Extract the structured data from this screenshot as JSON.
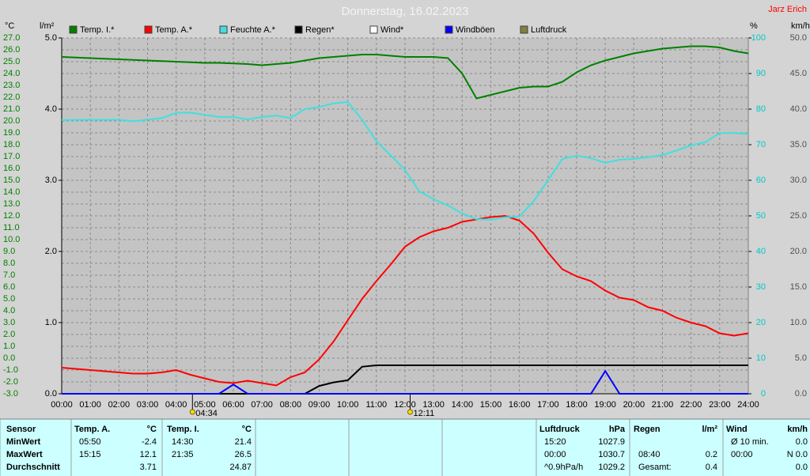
{
  "chart_data": {
    "type": "line",
    "title": "Donnerstag, 16.02.2023",
    "author": "Jarz Erich",
    "ylabel": "°C",
    "y2label": "l/m²",
    "y3label": "%",
    "y4label": "km/h",
    "x": [
      0,
      0.5,
      1,
      1.5,
      2,
      2.5,
      3,
      3.5,
      4,
      4.5,
      5,
      5.5,
      6,
      6.5,
      7,
      7.5,
      8,
      8.5,
      9,
      9.5,
      10,
      10.5,
      11,
      11.5,
      12,
      12.5,
      13,
      13.5,
      14,
      14.5,
      15,
      15.5,
      16,
      16.5,
      17,
      17.5,
      18,
      18.5,
      19,
      19.5,
      20,
      20.5,
      21,
      21.5,
      22,
      22.5,
      23,
      23.5,
      24
    ],
    "xlim": [
      0,
      24
    ],
    "xticks": [
      {
        "value": 0,
        "label": "00:00"
      },
      {
        "value": 1,
        "label": "01:00"
      },
      {
        "value": 2,
        "label": "02:00"
      },
      {
        "value": 3,
        "label": "03:00"
      },
      {
        "value": 4,
        "label": "04:00"
      },
      {
        "value": 5,
        "label": "05:00"
      },
      {
        "value": 6,
        "label": "06:00"
      },
      {
        "value": 7,
        "label": "07:00"
      },
      {
        "value": 8,
        "label": "08:00"
      },
      {
        "value": 9,
        "label": "09:00"
      },
      {
        "value": 10,
        "label": "10:00"
      },
      {
        "value": 11,
        "label": "11:00"
      },
      {
        "value": 12,
        "label": "12:00"
      },
      {
        "value": 13,
        "label": "13:00"
      },
      {
        "value": 14,
        "label": "14:00"
      },
      {
        "value": 15,
        "label": "15:00"
      },
      {
        "value": 16,
        "label": "16:00"
      },
      {
        "value": 17,
        "label": "17:00"
      },
      {
        "value": 18,
        "label": "18:00"
      },
      {
        "value": 19,
        "label": "19:00"
      },
      {
        "value": 20,
        "label": "20:00"
      },
      {
        "value": 21,
        "label": "21:00"
      },
      {
        "value": 22,
        "label": "22:00"
      },
      {
        "value": 23,
        "label": "23:00"
      },
      {
        "value": 24,
        "label": "24:00"
      }
    ],
    "ylim": [
      -3,
      27
    ],
    "yticks": [
      {
        "value": -3,
        "label": "-3.0"
      },
      {
        "value": -2,
        "label": "-2.0"
      },
      {
        "value": -1,
        "label": "-1.0"
      },
      {
        "value": 0,
        "label": "0.0"
      },
      {
        "value": 1,
        "label": "1.0"
      },
      {
        "value": 2,
        "label": "2.0"
      },
      {
        "value": 3,
        "label": "3.0"
      },
      {
        "value": 4,
        "label": "4.0"
      },
      {
        "value": 5,
        "label": "5.0"
      },
      {
        "value": 6,
        "label": "6.0"
      },
      {
        "value": 7,
        "label": "7.0"
      },
      {
        "value": 8,
        "label": "8.0"
      },
      {
        "value": 9,
        "label": "9.0"
      },
      {
        "value": 10,
        "label": "10.0"
      },
      {
        "value": 11,
        "label": "11.0"
      },
      {
        "value": 12,
        "label": "12.0"
      },
      {
        "value": 13,
        "label": "13.0"
      },
      {
        "value": 14,
        "label": "14.0"
      },
      {
        "value": 15,
        "label": "15.0"
      },
      {
        "value": 16,
        "label": "16.0"
      },
      {
        "value": 17,
        "label": "17.0"
      },
      {
        "value": 18,
        "label": "18.0"
      },
      {
        "value": 19,
        "label": "19.0"
      },
      {
        "value": 20,
        "label": "20.0"
      },
      {
        "value": 21,
        "label": "21.0"
      },
      {
        "value": 22,
        "label": "22.0"
      },
      {
        "value": 23,
        "label": "23.0"
      },
      {
        "value": 24,
        "label": "24.0"
      },
      {
        "value": 25,
        "label": "25.0"
      },
      {
        "value": 26,
        "label": "26.0"
      },
      {
        "value": 27,
        "label": "27.0"
      }
    ],
    "y2lim": [
      0,
      5
    ],
    "y2ticks": [
      {
        "value": 0,
        "label": "0.0"
      },
      {
        "value": 1,
        "label": "1.0"
      },
      {
        "value": 2,
        "label": "2.0"
      },
      {
        "value": 3,
        "label": "3.0"
      },
      {
        "value": 4,
        "label": "4.0"
      },
      {
        "value": 5,
        "label": "5.0"
      }
    ],
    "y3lim": [
      0,
      100
    ],
    "y3ticks": [
      0,
      10,
      20,
      30,
      40,
      50,
      60,
      70,
      80,
      90,
      100
    ],
    "y4lim": [
      0,
      50
    ],
    "y4ticks": [
      {
        "value": 0,
        "label": "0.0"
      },
      {
        "value": 5,
        "label": "5.0"
      },
      {
        "value": 10,
        "label": "10.0"
      },
      {
        "value": 15,
        "label": "15.0"
      },
      {
        "value": 20,
        "label": "20.0"
      },
      {
        "value": 25,
        "label": "25.0"
      },
      {
        "value": 30,
        "label": "30.0"
      },
      {
        "value": 35,
        "label": "35.0"
      },
      {
        "value": 40,
        "label": "40.0"
      },
      {
        "value": 45,
        "label": "45.0"
      },
      {
        "value": 50,
        "label": "50.0"
      }
    ],
    "grid": true,
    "series": [
      {
        "name": "Temp. I.*",
        "color": "#008000",
        "axis": "y",
        "values": [
          25.4,
          25.35,
          25.3,
          25.25,
          25.2,
          25.15,
          25.1,
          25.05,
          25.0,
          24.95,
          24.9,
          24.9,
          24.85,
          24.8,
          24.7,
          24.8,
          24.9,
          25.1,
          25.3,
          25.4,
          25.5,
          25.6,
          25.6,
          25.5,
          25.4,
          25.4,
          25.4,
          25.3,
          24.0,
          21.9,
          22.2,
          22.5,
          22.8,
          22.9,
          22.9,
          23.3,
          24.1,
          24.7,
          25.1,
          25.4,
          25.7,
          25.9,
          26.1,
          26.2,
          26.3,
          26.3,
          26.2,
          25.9,
          25.7
        ]
      },
      {
        "name": "Temp. A.*",
        "color": "#ff0000",
        "axis": "y",
        "values": [
          -0.8,
          -0.9,
          -1.0,
          -1.1,
          -1.2,
          -1.3,
          -1.3,
          -1.2,
          -1.0,
          -1.4,
          -1.7,
          -2.0,
          -2.1,
          -1.9,
          -2.1,
          -2.3,
          -1.6,
          -1.2,
          -0.1,
          1.4,
          3.2,
          5.0,
          6.5,
          7.9,
          9.4,
          10.2,
          10.7,
          11.0,
          11.5,
          11.7,
          11.9,
          12.0,
          11.6,
          10.5,
          8.9,
          7.5,
          6.9,
          6.5,
          5.7,
          5.1,
          4.9,
          4.3,
          4.0,
          3.4,
          3.0,
          2.7,
          2.1,
          1.9,
          2.1
        ]
      },
      {
        "name": "Feuchte A.*",
        "color": "#40e0e0",
        "axis": "y3",
        "values": [
          76.9,
          77,
          77,
          77,
          77,
          76.6,
          77,
          77.5,
          78.9,
          79,
          78.4,
          77.8,
          77.8,
          77.1,
          77.8,
          78.2,
          77.5,
          80,
          80.6,
          81.6,
          82,
          77,
          71,
          67,
          62.9,
          56.9,
          54.7,
          52.9,
          50.7,
          49.1,
          48.9,
          49.6,
          49.8,
          54.2,
          60,
          66,
          66.9,
          66.2,
          64.9,
          65.8,
          66,
          66.5,
          67.1,
          68.4,
          69.8,
          70.7,
          73.3,
          73.3,
          73
        ]
      },
      {
        "name": "Regen*",
        "color": "#000000",
        "axis": "y2",
        "values": [
          0,
          0,
          0,
          0,
          0,
          0,
          0,
          0,
          0,
          0,
          0,
          0,
          0,
          0,
          0,
          0,
          0,
          0,
          0.11,
          0.16,
          0.19,
          0.38,
          0.4,
          0.4,
          0.4,
          0.4,
          0.4,
          0.4,
          0.4,
          0.4,
          0.4,
          0.4,
          0.4,
          0.4,
          0.4,
          0.4,
          0.4,
          0.4,
          0.4,
          0.4,
          0.4,
          0.4,
          0.4,
          0.4,
          0.4,
          0.4,
          0.4,
          0.4,
          0.4
        ]
      },
      {
        "name": "Wind*",
        "color": "#ffffff",
        "axis": "y4"
      },
      {
        "name": "Windböen",
        "color": "#0000ff",
        "axis": "y4",
        "values": [
          0,
          0,
          0,
          0,
          0,
          0,
          0,
          0,
          0,
          0,
          0,
          0,
          1.3,
          0,
          0,
          0,
          0,
          0,
          0,
          0,
          0,
          0,
          0,
          0,
          0,
          0,
          0,
          0,
          0,
          0,
          0,
          0,
          0,
          0,
          0,
          0,
          0,
          0,
          3.2,
          0,
          0,
          0,
          0,
          0,
          0,
          0,
          0,
          0,
          0
        ]
      },
      {
        "name": "Luftdruck",
        "color": "#808040",
        "axis": "y4"
      }
    ],
    "markers": [
      {
        "x": 4.57,
        "label": "04:34"
      },
      {
        "x": 12.18,
        "label": "12:11"
      }
    ]
  },
  "stats": {
    "row_labels": [
      "Sensor",
      "MinWert",
      "MaxWert",
      "Durchschnitt"
    ],
    "groups": [
      {
        "name": "Temp. A.",
        "unit": "°C",
        "rows": [
          [
            "05:50",
            "-2.4"
          ],
          [
            "15:15",
            "12.1"
          ],
          [
            null,
            "3.71"
          ]
        ]
      },
      {
        "name": "Temp. I.",
        "unit": "°C",
        "rows": [
          [
            "14:30",
            "21.4"
          ],
          [
            "21:35",
            "26.5"
          ],
          [
            null,
            "24.87"
          ]
        ]
      },
      {
        "name": "Luftdruck",
        "unit": "hPa",
        "rows": [
          [
            "15:20",
            "1027.9"
          ],
          [
            "00:00",
            "1030.7"
          ],
          [
            "^0.9hPa/h",
            "1029.2"
          ]
        ]
      },
      {
        "name": "Regen",
        "unit": "l/m²",
        "rows": [
          [
            null,
            null
          ],
          [
            "08:40",
            "0.2"
          ],
          [
            "Gesamt:",
            "0.4"
          ]
        ]
      },
      {
        "name": "Wind",
        "unit": "km/h",
        "rows": [
          [
            "Ø 10 min.",
            "0.0"
          ],
          [
            "00:00",
            "N 0.0"
          ],
          [
            null,
            "0.0"
          ]
        ]
      }
    ]
  }
}
